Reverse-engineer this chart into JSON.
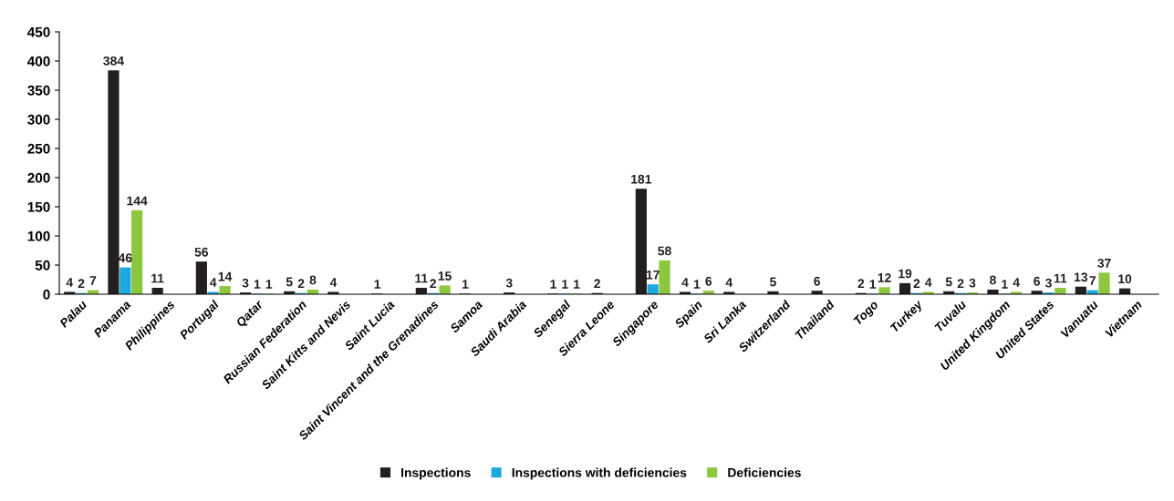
{
  "chart_data": {
    "type": "bar",
    "categories": [
      "Palau",
      "Panama",
      "Philippines",
      "Portugal",
      "Qatar",
      "Russian Federation",
      "Saint Kitts and Nevis",
      "Saint Lucia",
      "Saint Vincent and the Grenadines",
      "Samoa",
      "Saudi Arabia",
      "Senegal",
      "Sierra Leone",
      "Singapore",
      "Spain",
      "Sri Lanka",
      "Switzerland",
      "Thailand",
      "Togo",
      "Turkey",
      "Tuvalu",
      "United Kingdom",
      "United States",
      "Vanuatu",
      "Vietnam"
    ],
    "series": [
      {
        "name": "Inspections",
        "color": "#231f20",
        "values": [
          4,
          384,
          11,
          56,
          3,
          5,
          4,
          1,
          11,
          1,
          3,
          1,
          2,
          181,
          4,
          4,
          5,
          6,
          2,
          19,
          5,
          8,
          6,
          13,
          10
        ]
      },
      {
        "name": "Inspections with deficiencies",
        "color": "#1ea8e0",
        "values": [
          2,
          46,
          null,
          4,
          1,
          2,
          null,
          null,
          2,
          null,
          null,
          1,
          null,
          17,
          1,
          null,
          null,
          null,
          1,
          2,
          2,
          1,
          3,
          7,
          null
        ]
      },
      {
        "name": "Deficiencies",
        "color": "#8dc63f",
        "values": [
          7,
          144,
          null,
          14,
          1,
          8,
          null,
          null,
          15,
          null,
          null,
          1,
          null,
          58,
          6,
          null,
          null,
          null,
          12,
          4,
          3,
          4,
          11,
          37,
          null
        ]
      }
    ],
    "ylim": [
      0,
      450
    ],
    "yticks": [
      0,
      50,
      100,
      150,
      200,
      250,
      300,
      350,
      400,
      450
    ],
    "grid": false,
    "legend": "bottom",
    "data_labels": true
  }
}
